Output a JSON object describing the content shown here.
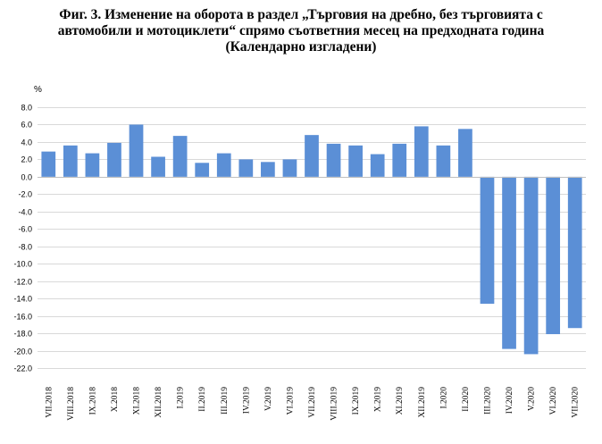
{
  "chart_data": {
    "type": "bar",
    "title_lines": [
      "Фиг. 3. Изменение на оборота в раздел „Търговия на дребно, без търговията с",
      "автомобили и мотоциклети“ спрямо съответния месец на предходната година",
      "(Календарно изгладени)"
    ],
    "ylabel": "%",
    "ylim": [
      -22,
      8
    ],
    "ytick_step": 2,
    "grid": true,
    "bar_color": "#5b8fd6",
    "categories": [
      "VII.2018",
      "VIII.2018",
      "IX.2018",
      "X.2018",
      "XI.2018",
      "XII.2018",
      "I.2019",
      "II.2019",
      "III.2019",
      "IV.2019",
      "V.2019",
      "VI.2019",
      "VII.2019",
      "VIII.2019",
      "IX.2019",
      "X.2019",
      "XI.2019",
      "XII.2019",
      "I.2020",
      "II.2020",
      "III.2020",
      "IV.2020",
      "V.2020",
      "VI.2020",
      "VII.2020"
    ],
    "values": [
      2.9,
      3.6,
      2.7,
      3.9,
      6.0,
      2.3,
      4.7,
      1.6,
      2.7,
      2.0,
      1.7,
      2.0,
      4.8,
      3.8,
      3.6,
      2.6,
      3.8,
      5.8,
      3.6,
      5.5,
      -14.6,
      -19.8,
      -20.4,
      -18.1,
      -17.4
    ]
  }
}
